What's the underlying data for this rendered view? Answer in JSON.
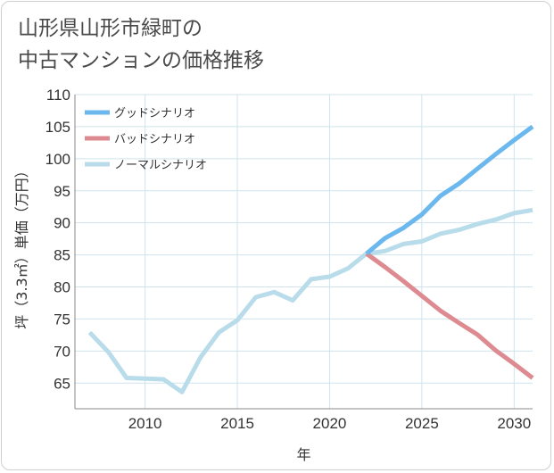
{
  "title": {
    "line1": "山形県山形市緑町の",
    "line2": "中古マンションの価格推移"
  },
  "chart_data": {
    "type": "line",
    "xlabel": "年",
    "ylabel": "坪（3.3㎡）単価（万円）",
    "xlim": [
      2006.2,
      2031
    ],
    "ylim": [
      61,
      110
    ],
    "x_ticks": [
      2010,
      2015,
      2020,
      2025,
      2030
    ],
    "y_ticks": [
      65,
      70,
      75,
      80,
      85,
      90,
      95,
      100,
      105,
      110
    ],
    "grid": true,
    "legend_position": "top-left",
    "series": [
      {
        "name": "グッドシナリオ",
        "color": "#6bb8ee",
        "x": [
          2022,
          2023,
          2024,
          2025,
          2026,
          2027,
          2028,
          2029,
          2030,
          2031
        ],
        "y": [
          85.2,
          87.6,
          89.2,
          91.3,
          94.2,
          96.1,
          98.4,
          100.7,
          102.9,
          105.0
        ]
      },
      {
        "name": "バッドシナリオ",
        "color": "#de8a91",
        "x": [
          2022,
          2023,
          2024,
          2025,
          2026,
          2027,
          2028,
          2029,
          2030,
          2031
        ],
        "y": [
          85.2,
          83.1,
          80.9,
          78.6,
          76.3,
          74.4,
          72.6,
          70.1,
          68.0,
          65.8
        ]
      },
      {
        "name": "ノーマルシナリオ",
        "color": "#b9dcea",
        "x": [
          2007,
          2008,
          2009,
          2010,
          2011,
          2012,
          2013,
          2014,
          2015,
          2016,
          2017,
          2018,
          2019,
          2020,
          2021,
          2022,
          2023,
          2024,
          2025,
          2026,
          2027,
          2028,
          2029,
          2030,
          2031
        ],
        "y": [
          72.9,
          69.9,
          65.8,
          65.7,
          65.6,
          63.6,
          69.0,
          72.9,
          74.8,
          78.4,
          79.2,
          77.9,
          81.2,
          81.6,
          82.9,
          85.2,
          85.6,
          86.7,
          87.1,
          88.3,
          88.9,
          89.8,
          90.5,
          91.5,
          92.0
        ]
      }
    ]
  }
}
